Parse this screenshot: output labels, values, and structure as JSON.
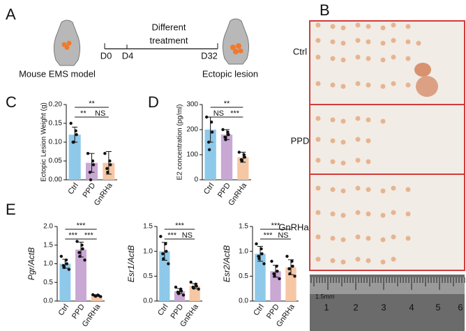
{
  "figure": {
    "letters": [
      "A",
      "B",
      "C",
      "D",
      "E"
    ],
    "diagram": {
      "model": "Mouse EMS model",
      "treatment": [
        "Different",
        "treatment"
      ],
      "days": [
        "D0",
        "D4",
        "D32"
      ],
      "result": "Ectopic lesion"
    },
    "photo": {
      "groups": [
        "Ctrl",
        "PPD",
        "GnRHa"
      ],
      "ruler": [
        "1.5mm",
        "1",
        "2",
        "3",
        "4",
        "5",
        "6"
      ]
    }
  },
  "chart_data": [
    {
      "type": "bar",
      "y_label": "Ectopic Lesion Weight (g)",
      "categories": [
        "Ctrl",
        "PPD",
        "GnRHa"
      ],
      "colors": [
        "#8ec9ea",
        "#c9a8d4",
        "#f6c7a5"
      ],
      "values": [
        0.12,
        0.045,
        0.045
      ],
      "errors": [
        0.02,
        0.025,
        0.03
      ],
      "points": [
        [
          0.15,
          0.13,
          0.12,
          0.1,
          0.1
        ],
        [
          0.07,
          0.05,
          0.04,
          0.02,
          0.0
        ],
        [
          0.07,
          0.05,
          0.04,
          0.03,
          0.02
        ]
      ],
      "ylim": [
        0,
        0.2
      ],
      "yticks": [
        {
          "value": 0,
          "label": "0.00"
        },
        {
          "value": 0.05,
          "label": "0.05"
        },
        {
          "value": 0.1,
          "label": "0.10"
        },
        {
          "value": 0.15,
          "label": "0.15"
        },
        {
          "value": 0.2,
          "label": "0.20"
        }
      ],
      "significance": [
        {
          "label": "**",
          "from": 0,
          "to": 2
        },
        {
          "label": "**",
          "from": 0,
          "to": 1
        },
        {
          "label": "NS",
          "from": 1,
          "to": 2
        }
      ]
    },
    {
      "type": "bar",
      "y_label": "E2 concentration (pg/ml)",
      "categories": [
        "Ctrl",
        "PPD",
        "GnRHa"
      ],
      "colors": [
        "#8ec9ea",
        "#c9a8d4",
        "#f6c7a5"
      ],
      "values": [
        200,
        180,
        90
      ],
      "errors": [
        50,
        20,
        20
      ],
      "points": [
        [
          250,
          230,
          190,
          150,
          120
        ],
        [
          200,
          190,
          180,
          170,
          160
        ],
        [
          110,
          100,
          90,
          80,
          75
        ]
      ],
      "ylim": [
        0,
        300
      ],
      "yticks": [
        0,
        100,
        200,
        300
      ],
      "significance": [
        {
          "label": "**",
          "from": 0,
          "to": 2
        },
        {
          "label": "NS",
          "from": 0,
          "to": 1
        },
        {
          "label": "***",
          "from": 1,
          "to": 2
        }
      ]
    },
    {
      "type": "bar",
      "y_label": "Pgr/ActB",
      "y_label_italic": true,
      "categories": [
        "Ctrl",
        "PPD",
        "GnRHa"
      ],
      "colors": [
        "#8ec9ea",
        "#c9a8d4",
        "#f6c7a5"
      ],
      "values": [
        1.0,
        1.38,
        0.15
      ],
      "errors": [
        0.12,
        0.2,
        0.02
      ],
      "points": [
        [
          1.2,
          1.1,
          1.0,
          0.95,
          0.9,
          0.85
        ],
        [
          1.6,
          1.5,
          1.4,
          1.3,
          1.2,
          1.1
        ],
        [
          0.17,
          0.16,
          0.15,
          0.14,
          0.13,
          0.12
        ]
      ],
      "ylim": [
        0,
        2
      ],
      "yticks": [
        {
          "value": 0,
          "label": "0.0"
        },
        {
          "value": 0.5,
          "label": "0.5"
        },
        {
          "value": 1,
          "label": "1.0"
        },
        {
          "value": 1.5,
          "label": "1.5"
        },
        {
          "value": 2,
          "label": "2.0"
        }
      ],
      "significance": [
        {
          "label": "***",
          "from": 0,
          "to": 2
        },
        {
          "label": "***",
          "from": 0,
          "to": 1
        },
        {
          "label": "***",
          "from": 1,
          "to": 2
        }
      ]
    },
    {
      "type": "bar",
      "y_label": "Esr1/ActB",
      "y_label_italic": true,
      "categories": [
        "Ctrl",
        "PPD",
        "GnRHa"
      ],
      "colors": [
        "#8ec9ea",
        "#c9a8d4",
        "#f6c7a5"
      ],
      "values": [
        1.0,
        0.2,
        0.3
      ],
      "errors": [
        0.18,
        0.05,
        0.05
      ],
      "points": [
        [
          1.3,
          1.15,
          1.0,
          0.95,
          0.85,
          0.75
        ],
        [
          0.28,
          0.24,
          0.2,
          0.18,
          0.15,
          0.12
        ],
        [
          0.38,
          0.34,
          0.3,
          0.28,
          0.26,
          0.24
        ]
      ],
      "ylim": [
        0,
        1.5
      ],
      "yticks": [
        {
          "value": 0,
          "label": "0.0"
        },
        {
          "value": 0.5,
          "label": "0.5"
        },
        {
          "value": 1,
          "label": "1.0"
        },
        {
          "value": 1.5,
          "label": "1.5"
        }
      ],
      "significance": [
        {
          "label": "***",
          "from": 0,
          "to": 2
        },
        {
          "label": "***",
          "from": 0,
          "to": 1
        },
        {
          "label": "NS",
          "from": 1,
          "to": 2
        }
      ]
    },
    {
      "type": "bar",
      "y_label": "Esr2/ActB",
      "y_label_italic": true,
      "categories": [
        "Ctrl",
        "PPD",
        "GnRHa"
      ],
      "colors": [
        "#8ec9ea",
        "#c9a8d4",
        "#f6c7a5"
      ],
      "values": [
        0.95,
        0.6,
        0.68
      ],
      "errors": [
        0.15,
        0.12,
        0.15
      ],
      "points": [
        [
          1.15,
          1.05,
          0.95,
          0.9,
          0.85,
          0.75
        ],
        [
          0.8,
          0.7,
          0.6,
          0.55,
          0.5,
          0.45
        ],
        [
          0.9,
          0.8,
          0.7,
          0.65,
          0.55,
          0.5
        ]
      ],
      "ylim": [
        0,
        1.5
      ],
      "yticks": [
        {
          "value": 0,
          "label": "0.0"
        },
        {
          "value": 0.5,
          "label": "0.5"
        },
        {
          "value": 1,
          "label": "1.0"
        },
        {
          "value": 1.5,
          "label": "1.5"
        }
      ],
      "significance": [
        {
          "label": "***",
          "from": 0,
          "to": 2
        },
        {
          "label": "***",
          "from": 0,
          "to": 1
        },
        {
          "label": "NS",
          "from": 1,
          "to": 2
        }
      ]
    }
  ]
}
